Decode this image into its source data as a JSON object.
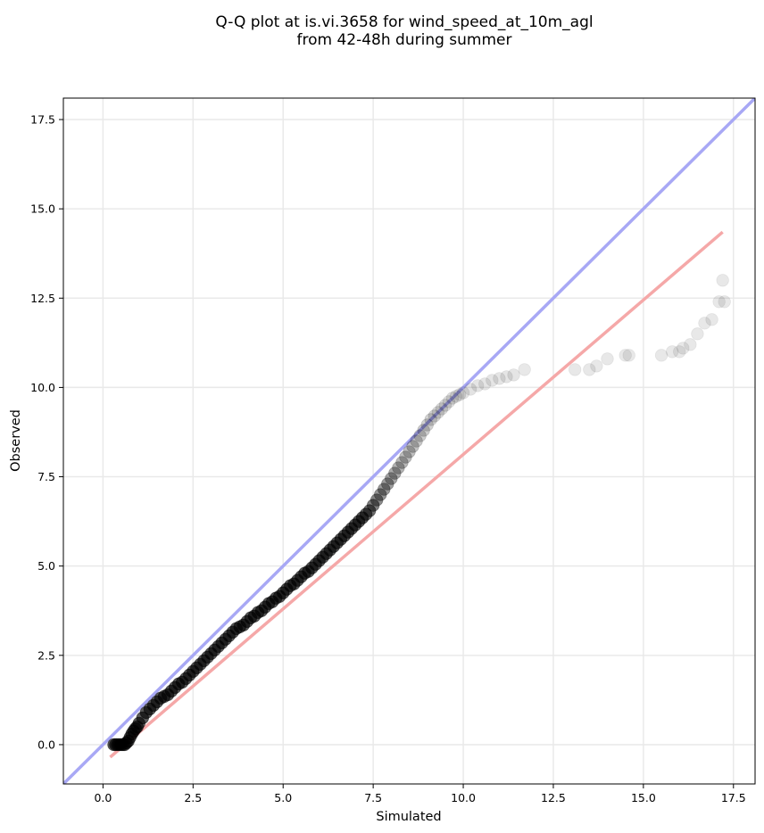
{
  "chart_data": {
    "type": "scatter",
    "title_lines": [
      "Q-Q plot at is.vi.3658 for wind_speed_at_10m_agl",
      "from 42-48h during summer"
    ],
    "xlabel": "Simulated",
    "ylabel": "Observed",
    "xlim": [
      -1.1,
      18.1
    ],
    "ylim": [
      -1.1,
      18.1
    ],
    "x_ticks": [
      0.0,
      2.5,
      5.0,
      7.5,
      10.0,
      12.5,
      15.0,
      17.5
    ],
    "y_ticks": [
      0.0,
      2.5,
      5.0,
      7.5,
      10.0,
      12.5,
      15.0,
      17.5
    ],
    "x_tick_labels": [
      "0.0",
      "2.5",
      "5.0",
      "7.5",
      "10.0",
      "12.5",
      "15.0",
      "17.5"
    ],
    "y_tick_labels": [
      "0.0",
      "2.5",
      "5.0",
      "7.5",
      "10.0",
      "12.5",
      "15.0",
      "17.5"
    ],
    "grid": true,
    "reference_lines": [
      {
        "kind": "identity",
        "color": "#a8a8f5",
        "x": [
          -1.1,
          18.1
        ],
        "y": [
          -1.1,
          18.1
        ]
      },
      {
        "kind": "fit",
        "color": "#f5a8a8",
        "x": [
          0.2,
          17.2
        ],
        "y": [
          -0.35,
          14.35
        ]
      }
    ],
    "points": {
      "color": "#000000",
      "x": [
        0.3,
        0.35,
        0.4,
        0.45,
        0.5,
        0.55,
        0.6,
        0.65,
        0.7,
        0.75,
        0.8,
        0.85,
        0.9,
        0.95,
        1.0,
        1.1,
        1.2,
        1.3,
        1.4,
        1.5,
        1.6,
        1.7,
        1.8,
        1.9,
        2.0,
        2.1,
        2.2,
        2.3,
        2.4,
        2.5,
        2.6,
        2.7,
        2.8,
        2.9,
        3.0,
        3.1,
        3.2,
        3.3,
        3.4,
        3.5,
        3.6,
        3.7,
        3.8,
        3.9,
        4.0,
        4.1,
        4.2,
        4.3,
        4.4,
        4.5,
        4.6,
        4.7,
        4.8,
        4.9,
        5.0,
        5.1,
        5.2,
        5.3,
        5.4,
        5.5,
        5.6,
        5.7,
        5.8,
        5.9,
        6.0,
        6.1,
        6.2,
        6.3,
        6.4,
        6.5,
        6.6,
        6.7,
        6.8,
        6.9,
        7.0,
        7.1,
        7.2,
        7.3,
        7.4,
        7.5,
        7.6,
        7.7,
        7.8,
        7.9,
        8.0,
        8.1,
        8.2,
        8.3,
        8.4,
        8.5,
        8.6,
        8.7,
        8.8,
        8.9,
        9.0,
        9.1,
        9.2,
        9.3,
        9.4,
        9.5,
        9.6,
        9.7,
        9.8,
        9.9,
        10.0,
        10.2,
        10.4,
        10.6,
        10.8,
        11.0,
        11.2,
        11.4,
        11.7,
        13.1,
        13.5,
        13.7,
        14.0,
        14.5,
        14.6,
        15.5,
        15.8,
        16.0,
        16.1,
        16.3,
        16.5,
        16.7,
        16.9,
        17.1,
        17.2,
        17.25
      ],
      "y": [
        0.0,
        0.0,
        0.0,
        0.0,
        0.0,
        0.0,
        0.0,
        0.05,
        0.1,
        0.2,
        0.3,
        0.38,
        0.45,
        0.5,
        0.6,
        0.75,
        0.9,
        1.0,
        1.1,
        1.2,
        1.3,
        1.35,
        1.4,
        1.5,
        1.6,
        1.7,
        1.75,
        1.85,
        1.95,
        2.05,
        2.15,
        2.25,
        2.35,
        2.45,
        2.55,
        2.65,
        2.75,
        2.85,
        2.95,
        3.05,
        3.15,
        3.25,
        3.3,
        3.35,
        3.45,
        3.55,
        3.6,
        3.7,
        3.75,
        3.85,
        3.95,
        4.0,
        4.1,
        4.15,
        4.25,
        4.35,
        4.45,
        4.5,
        4.6,
        4.7,
        4.8,
        4.85,
        4.95,
        5.05,
        5.15,
        5.25,
        5.35,
        5.45,
        5.55,
        5.65,
        5.75,
        5.85,
        5.95,
        6.05,
        6.15,
        6.25,
        6.35,
        6.45,
        6.55,
        6.7,
        6.85,
        7.0,
        7.15,
        7.3,
        7.45,
        7.6,
        7.75,
        7.9,
        8.05,
        8.2,
        8.35,
        8.5,
        8.65,
        8.8,
        8.95,
        9.1,
        9.2,
        9.3,
        9.4,
        9.5,
        9.6,
        9.7,
        9.75,
        9.8,
        9.85,
        9.95,
        10.05,
        10.1,
        10.2,
        10.25,
        10.3,
        10.35,
        10.5,
        10.5,
        10.5,
        10.6,
        10.8,
        10.9,
        10.9,
        10.9,
        11.0,
        11.0,
        11.1,
        11.2,
        11.5,
        11.8,
        11.9,
        12.4,
        13.0,
        12.4
      ],
      "alpha": [
        0.65,
        0.65,
        0.65,
        0.65,
        0.65,
        0.65,
        0.65,
        0.65,
        0.65,
        0.65,
        0.65,
        0.65,
        0.65,
        0.65,
        0.65,
        0.65,
        0.65,
        0.65,
        0.65,
        0.65,
        0.65,
        0.65,
        0.65,
        0.65,
        0.65,
        0.65,
        0.65,
        0.65,
        0.65,
        0.65,
        0.65,
        0.65,
        0.65,
        0.65,
        0.65,
        0.65,
        0.65,
        0.65,
        0.65,
        0.65,
        0.65,
        0.65,
        0.65,
        0.65,
        0.65,
        0.65,
        0.65,
        0.65,
        0.65,
        0.65,
        0.65,
        0.65,
        0.65,
        0.65,
        0.65,
        0.65,
        0.65,
        0.65,
        0.65,
        0.65,
        0.65,
        0.65,
        0.65,
        0.65,
        0.65,
        0.65,
        0.65,
        0.65,
        0.65,
        0.65,
        0.65,
        0.65,
        0.65,
        0.65,
        0.65,
        0.65,
        0.65,
        0.6,
        0.55,
        0.5,
        0.45,
        0.42,
        0.4,
        0.38,
        0.35,
        0.33,
        0.3,
        0.28,
        0.26,
        0.25,
        0.24,
        0.22,
        0.2,
        0.2,
        0.18,
        0.17,
        0.16,
        0.15,
        0.15,
        0.14,
        0.13,
        0.13,
        0.12,
        0.12,
        0.11,
        0.11,
        0.1,
        0.1,
        0.1,
        0.1,
        0.1,
        0.1,
        0.09,
        0.09,
        0.09,
        0.09,
        0.09,
        0.09,
        0.09,
        0.09,
        0.09,
        0.09,
        0.09,
        0.09,
        0.09,
        0.09,
        0.09,
        0.09,
        0.09,
        0.09
      ]
    }
  }
}
